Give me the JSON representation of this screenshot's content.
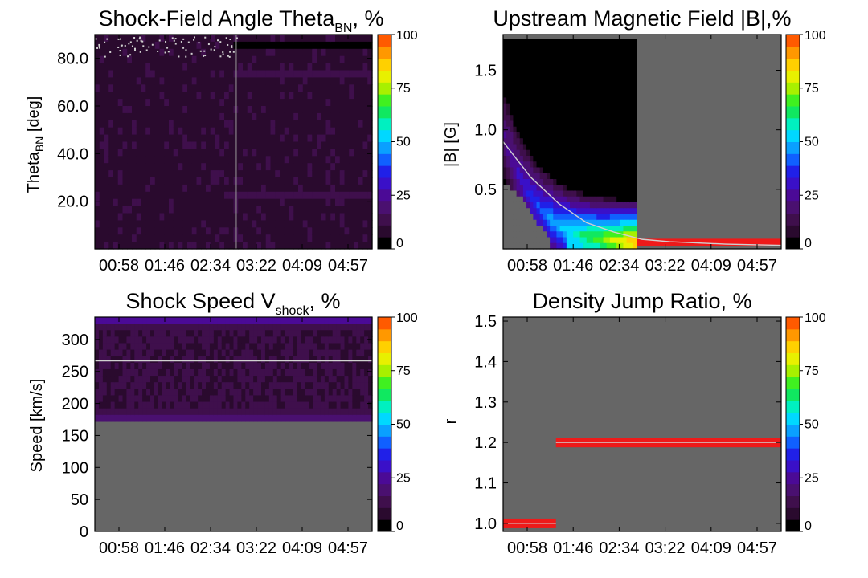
{
  "colorbar": {
    "ticks": [
      "0",
      "25",
      "50",
      "75",
      "100"
    ],
    "colors": [
      "#000000",
      "#2a0a2e",
      "#3f0f4c",
      "#4a1070",
      "#4b0a96",
      "#3a10c8",
      "#2020e8",
      "#1060ff",
      "#0aa0ff",
      "#00d8ff",
      "#00f0c0",
      "#10e860",
      "#40f020",
      "#a8f000",
      "#e8f000",
      "#ffd000",
      "#ff9800",
      "#ff5a00"
    ],
    "no_data_color": "#666666",
    "fit_line_color": "#d0d0d0",
    "peak_color": "#ee1a1a"
  },
  "chart_data": [
    {
      "id": "theta",
      "type": "heatmap",
      "title": "Shock-Field Angle Theta",
      "title_sub": "BN",
      "title_suffix": ", %",
      "ylabel": "Theta",
      "ylabel_sub": "BN",
      "ylabel_suffix": " [deg]",
      "xticks": [
        "00:58",
        "01:46",
        "02:34",
        "03:22",
        "04:09",
        "04:57"
      ],
      "yticks": [
        "20.0",
        "40.0",
        "60.0",
        "80.0"
      ],
      "ytick_values": [
        20,
        40,
        60,
        80
      ],
      "ylim": [
        0,
        90
      ],
      "description_levels": "mostly low 5-12% across all angles and times"
    },
    {
      "id": "bfield",
      "type": "heatmap",
      "title": "Upstream Magnetic Field |B|,%",
      "ylabel": "|B| [G]",
      "xticks": [
        "00:58",
        "01:46",
        "02:34",
        "03:22",
        "04:09",
        "04:57"
      ],
      "yticks": [
        "0.5",
        "1.0",
        "1.5"
      ],
      "ytick_values": [
        0.5,
        1.0,
        1.5
      ],
      "ylim": [
        0.0,
        1.8
      ],
      "fit_curve": [
        [
          0,
          0.9
        ],
        [
          0.1,
          0.6
        ],
        [
          0.2,
          0.38
        ],
        [
          0.3,
          0.22
        ],
        [
          0.4,
          0.14
        ],
        [
          0.5,
          0.08
        ],
        [
          0.6,
          0.06
        ],
        [
          0.8,
          0.04
        ],
        [
          1.0,
          0.03
        ]
      ]
    },
    {
      "id": "speed",
      "type": "heatmap",
      "title": "Shock Speed V",
      "title_sub": "shock",
      "title_suffix": ", %",
      "ylabel": "Speed [km/s]",
      "xticks": [
        "00:58",
        "01:46",
        "02:34",
        "03:22",
        "04:09",
        "04:57"
      ],
      "yticks": [
        "0",
        "50",
        "100",
        "150",
        "200",
        "250",
        "300"
      ],
      "ytick_values": [
        0,
        50,
        100,
        150,
        200,
        250,
        300
      ],
      "ylim": [
        0,
        335
      ],
      "data_floor": 172,
      "fit_line": 267
    },
    {
      "id": "density",
      "type": "heatmap",
      "title": "Density Jump Ratio, %",
      "ylabel": "r",
      "xticks": [
        "00:58",
        "01:46",
        "02:34",
        "03:22",
        "04:09",
        "04:57"
      ],
      "yticks": [
        "1.0",
        "1.1",
        "1.2",
        "1.3",
        "1.4",
        "1.5"
      ],
      "ytick_values": [
        1.0,
        1.1,
        1.2,
        1.3,
        1.4,
        1.5
      ],
      "ylim": [
        0.98,
        1.51
      ],
      "segments": [
        {
          "t0": 0.0,
          "t1": 0.19,
          "r": 1.0
        },
        {
          "t0": 0.19,
          "t1": 1.0,
          "r": 1.2
        }
      ]
    }
  ]
}
